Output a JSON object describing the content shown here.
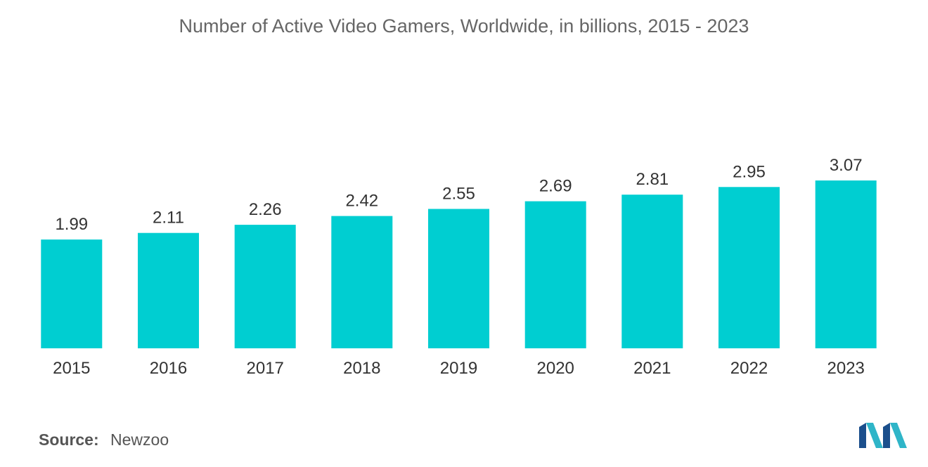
{
  "chart_data": {
    "type": "bar",
    "title": "Number of Active Video Gamers, Worldwide, in billions, 2015 - 2023",
    "categories": [
      "2015",
      "2016",
      "2017",
      "2018",
      "2019",
      "2020",
      "2021",
      "2022",
      "2023"
    ],
    "values": [
      1.99,
      2.11,
      2.26,
      2.42,
      2.55,
      2.69,
      2.81,
      2.95,
      3.07
    ],
    "value_labels": [
      "1.99",
      "2.11",
      "2.26",
      "2.42",
      "2.55",
      "2.69",
      "2.81",
      "2.95",
      "3.07"
    ],
    "xlabel": "",
    "ylabel": "",
    "ylim": [
      0,
      3.07
    ],
    "grid": false,
    "legend": "none",
    "bar_color": "#00CED1"
  },
  "source": {
    "label": "Source:",
    "value": "Newzoo"
  },
  "logo": {
    "icon": "mordor-intelligence-logo-icon",
    "colors": [
      "#1B4F8C",
      "#2FB5C8"
    ]
  }
}
